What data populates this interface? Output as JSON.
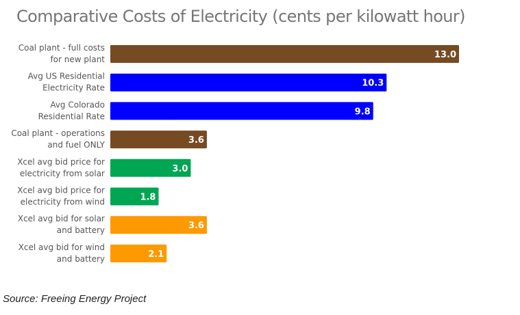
{
  "chart_data": {
    "type": "bar",
    "orientation": "horizontal",
    "title": "Comparative Costs of Electricity (cents per kilowatt hour)",
    "xlabel": "",
    "ylabel": "",
    "xlim": [
      0,
      13.0
    ],
    "grid": false,
    "categories": [
      [
        "Coal plant - full costs",
        "for new plant"
      ],
      [
        "Avg US Residential",
        "Electricity Rate"
      ],
      [
        "Avg Colorado",
        "Residential Rate"
      ],
      [
        "Coal plant - operations",
        "and fuel ONLY"
      ],
      [
        "Xcel avg bid price for",
        "electricity from solar"
      ],
      [
        "Xcel avg bid price for",
        "electricity from wind"
      ],
      [
        "Xcel avg bid for solar",
        "and battery"
      ],
      [
        "Xcel avg bid for wind",
        "and battery"
      ]
    ],
    "values": [
      13.0,
      10.3,
      9.8,
      3.6,
      3.0,
      1.8,
      3.6,
      2.1
    ],
    "value_labels": [
      "13.0",
      "10.3",
      "9.8",
      "3.6",
      "3.0",
      "1.8",
      "3.6",
      "2.1"
    ],
    "colors": [
      "#764a23",
      "#0000ff",
      "#0000ff",
      "#764a23",
      "#00a651",
      "#00a651",
      "#ff9900",
      "#ff9900"
    ]
  },
  "source": "Source: Freeing Energy Project"
}
